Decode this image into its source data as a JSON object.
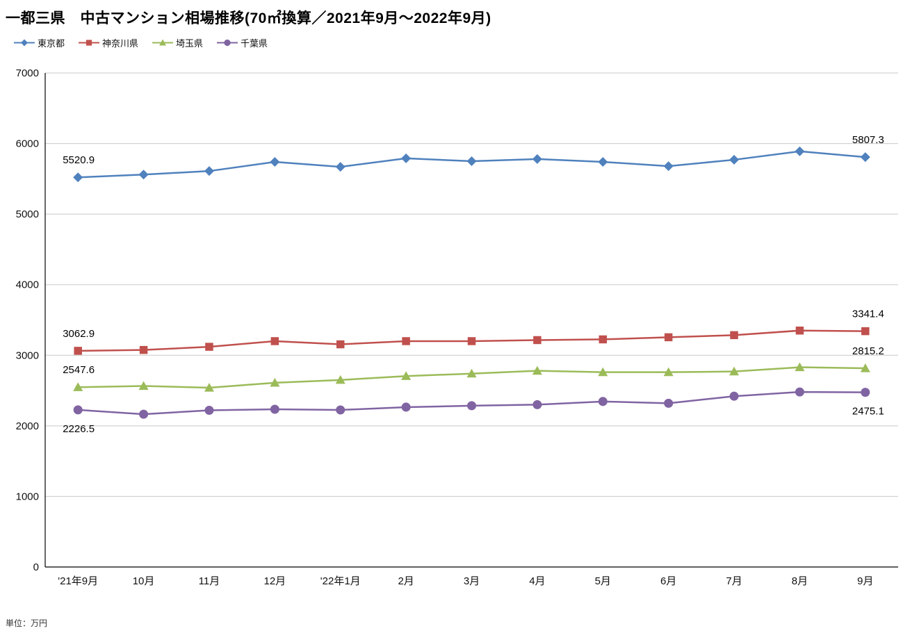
{
  "title": "一都三県　中古マンション相場推移(70㎡換算／2021年9月～2022年9月)",
  "unit_note": "単位：万円",
  "chart_data": {
    "type": "line",
    "title": "一都三県　中古マンション相場推移(70㎡換算／2021年9月～2022年9月)",
    "unit": "万円",
    "categories": [
      "'21年9月",
      "10月",
      "11月",
      "12月",
      "'22年1月",
      "2月",
      "3月",
      "4月",
      "5月",
      "6月",
      "7月",
      "8月",
      "9月"
    ],
    "ylim": [
      0,
      7000
    ],
    "ytick_interval": 1000,
    "grid": true,
    "legend_position": "top-left",
    "series": [
      {
        "name": "東京都",
        "color": "#4F81BD",
        "marker": "diamond",
        "label_side": "above",
        "first_label": "5520.9",
        "last_label": "5807.3",
        "values": [
          5520.9,
          5560,
          5610,
          5740,
          5670,
          5790,
          5750,
          5780,
          5740,
          5680,
          5770,
          5890,
          5807.3
        ]
      },
      {
        "name": "神奈川県",
        "color": "#C0504D",
        "marker": "square",
        "label_side": "above",
        "first_label": "3062.9",
        "last_label": "3341.4",
        "values": [
          3062.9,
          3075,
          3120,
          3200,
          3155,
          3200,
          3200,
          3215,
          3225,
          3255,
          3285,
          3350,
          3341.4
        ]
      },
      {
        "name": "埼玉県",
        "color": "#9BBB59",
        "marker": "triangle",
        "label_side": "above",
        "first_label": "2547.6",
        "last_label": "2815.2",
        "values": [
          2547.6,
          2565,
          2540,
          2610,
          2650,
          2705,
          2740,
          2780,
          2760,
          2760,
          2770,
          2830,
          2815.2
        ]
      },
      {
        "name": "千葉県",
        "color": "#8064A2",
        "marker": "circle",
        "label_side": "below",
        "first_label": "2226.5",
        "last_label": "2475.1",
        "values": [
          2226.5,
          2165,
          2220,
          2235,
          2225,
          2265,
          2285,
          2300,
          2345,
          2320,
          2420,
          2480,
          2475.1
        ]
      }
    ]
  }
}
